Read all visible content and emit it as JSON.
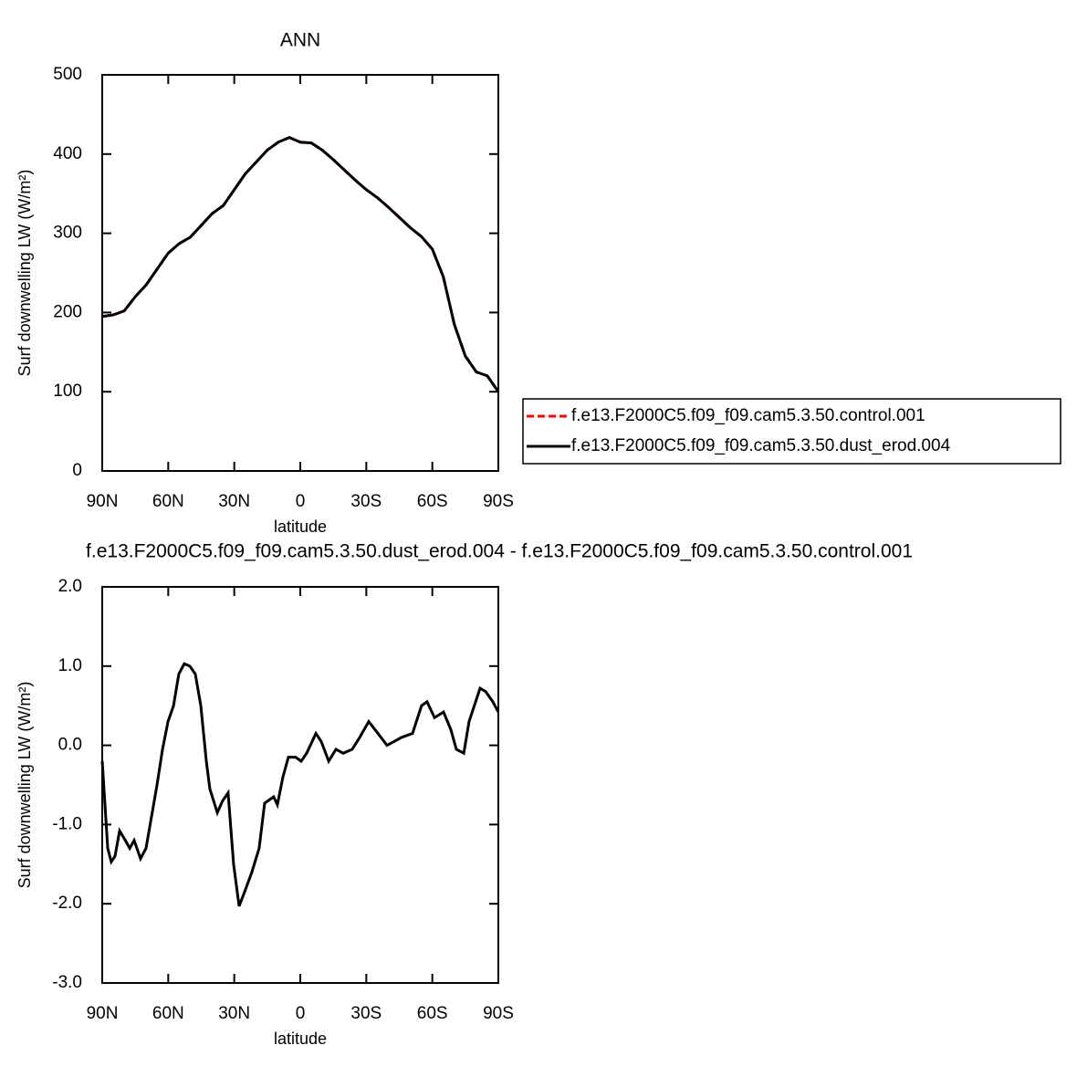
{
  "chart_data": [
    {
      "type": "line",
      "title": "ANN",
      "xlabel": "latitude",
      "ylabel": "Surf downwelling LW (W/m²)",
      "xlim": [
        90,
        -90
      ],
      "xticks": [
        {
          "value": 90,
          "label": "90N"
        },
        {
          "value": 60,
          "label": "60N"
        },
        {
          "value": 30,
          "label": "30N"
        },
        0,
        {
          "value": -30,
          "label": "30S"
        },
        {
          "value": -60,
          "label": "60S"
        },
        {
          "value": -90,
          "label": "90S"
        }
      ],
      "ylim": [
        0,
        500
      ],
      "yticks": [
        0,
        100,
        200,
        300,
        400,
        500
      ],
      "legend": "right",
      "x": [
        90,
        85,
        80,
        75,
        70,
        65,
        60,
        55,
        50,
        45,
        40,
        35,
        30,
        25,
        20,
        15,
        10,
        5,
        0,
        -5,
        -10,
        -15,
        -20,
        -25,
        -30,
        -35,
        -40,
        -45,
        -50,
        -55,
        -60,
        -65,
        -70,
        -75,
        -80,
        -85,
        -90
      ],
      "series": [
        {
          "name": "f.e13.F2000C5.f09_f09.cam5.3.50.control.001",
          "color": "#ff0000",
          "linestyle": "dashed",
          "values": [
            195,
            197,
            202,
            220,
            235,
            255,
            275,
            287,
            295,
            310,
            325,
            335,
            355,
            375,
            390,
            405,
            415,
            421,
            415,
            414,
            405,
            393,
            380,
            367,
            355,
            345,
            333,
            320,
            307,
            296,
            280,
            245,
            185,
            145,
            125,
            120,
            100
          ]
        },
        {
          "name": "f.e13.F2000C5.f09_f09.cam5.3.50.dust_erod.004",
          "color": "#000000",
          "linestyle": "solid",
          "values": [
            195,
            197,
            202,
            220,
            235,
            255,
            275,
            287,
            295,
            310,
            325,
            335,
            355,
            375,
            390,
            405,
            415,
            421,
            415,
            414,
            405,
            393,
            380,
            367,
            355,
            345,
            333,
            320,
            307,
            296,
            280,
            245,
            185,
            145,
            125,
            120,
            100
          ]
        }
      ]
    },
    {
      "type": "line",
      "title": "f.e13.F2000C5.f09_f09.cam5.3.50.dust_erod.004 - f.e13.F2000C5.f09_f09.cam5.3.50.control.001",
      "xlabel": "latitude",
      "ylabel": "Surf downwelling LW (W/m²)",
      "xlim": [
        90,
        -90
      ],
      "xticks": [
        {
          "value": 90,
          "label": "90N"
        },
        {
          "value": 60,
          "label": "60N"
        },
        {
          "value": 30,
          "label": "30N"
        },
        0,
        {
          "value": -30,
          "label": "30S"
        },
        {
          "value": -60,
          "label": "60S"
        },
        {
          "value": -90,
          "label": "90S"
        }
      ],
      "ylim": [
        -3,
        2
      ],
      "yticks": [
        {
          "value": -3,
          "label": "-3.0"
        },
        {
          "value": -2,
          "label": "-2.0"
        },
        {
          "value": -1,
          "label": "-1.0"
        },
        {
          "value": 0,
          "label": "0.0"
        },
        {
          "value": 1,
          "label": "1.0"
        },
        {
          "value": 2,
          "label": "2.0"
        }
      ],
      "x": [
        90,
        87.5,
        85.9,
        84.2,
        82.1,
        79.5,
        77.5,
        75.5,
        72.6,
        70.1,
        67.6,
        65.1,
        62.6,
        60.1,
        57.6,
        55.2,
        52.7,
        50.2,
        47.7,
        45.2,
        42.7,
        41.1,
        37.7,
        35.3,
        32.8,
        30.3,
        27.8,
        25.3,
        22.0,
        18.7,
        16.2,
        12.1,
        10.4,
        7.9,
        5.4,
        2.1,
        -0.4,
        -2.9,
        -7.1,
        -9.5,
        -12.9,
        -16.2,
        -19.5,
        -23.6,
        -27.0,
        -31.1,
        -35.3,
        -39.4,
        -42.7,
        -46.0,
        -51.0,
        -55.1,
        -57.6,
        -61.0,
        -65.1,
        -68.4,
        -70.9,
        -74.3,
        -76.7,
        -81.7,
        -84.2,
        -87.5,
        -90
      ],
      "series": [
        {
          "color": "#000000",
          "linestyle": "solid",
          "values": [
            -0.2,
            -1.3,
            -1.47,
            -1.4,
            -1.08,
            -1.2,
            -1.3,
            -1.2,
            -1.43,
            -1.3,
            -0.9,
            -0.5,
            -0.05,
            0.3,
            0.5,
            0.9,
            1.03,
            1.0,
            0.9,
            0.5,
            -0.2,
            -0.55,
            -0.85,
            -0.7,
            -0.6,
            -1.5,
            -2.03,
            -1.85,
            -1.6,
            -1.3,
            -0.73,
            -0.65,
            -0.75,
            -0.4,
            -0.15,
            -0.15,
            -0.2,
            -0.1,
            0.15,
            0.05,
            -0.2,
            -0.05,
            -0.1,
            -0.05,
            0.1,
            0.3,
            0.15,
            0.0,
            0.05,
            0.1,
            0.15,
            0.5,
            0.55,
            0.35,
            0.42,
            0.2,
            -0.05,
            -0.1,
            0.3,
            0.72,
            0.68,
            0.55,
            0.42
          ]
        }
      ]
    }
  ]
}
